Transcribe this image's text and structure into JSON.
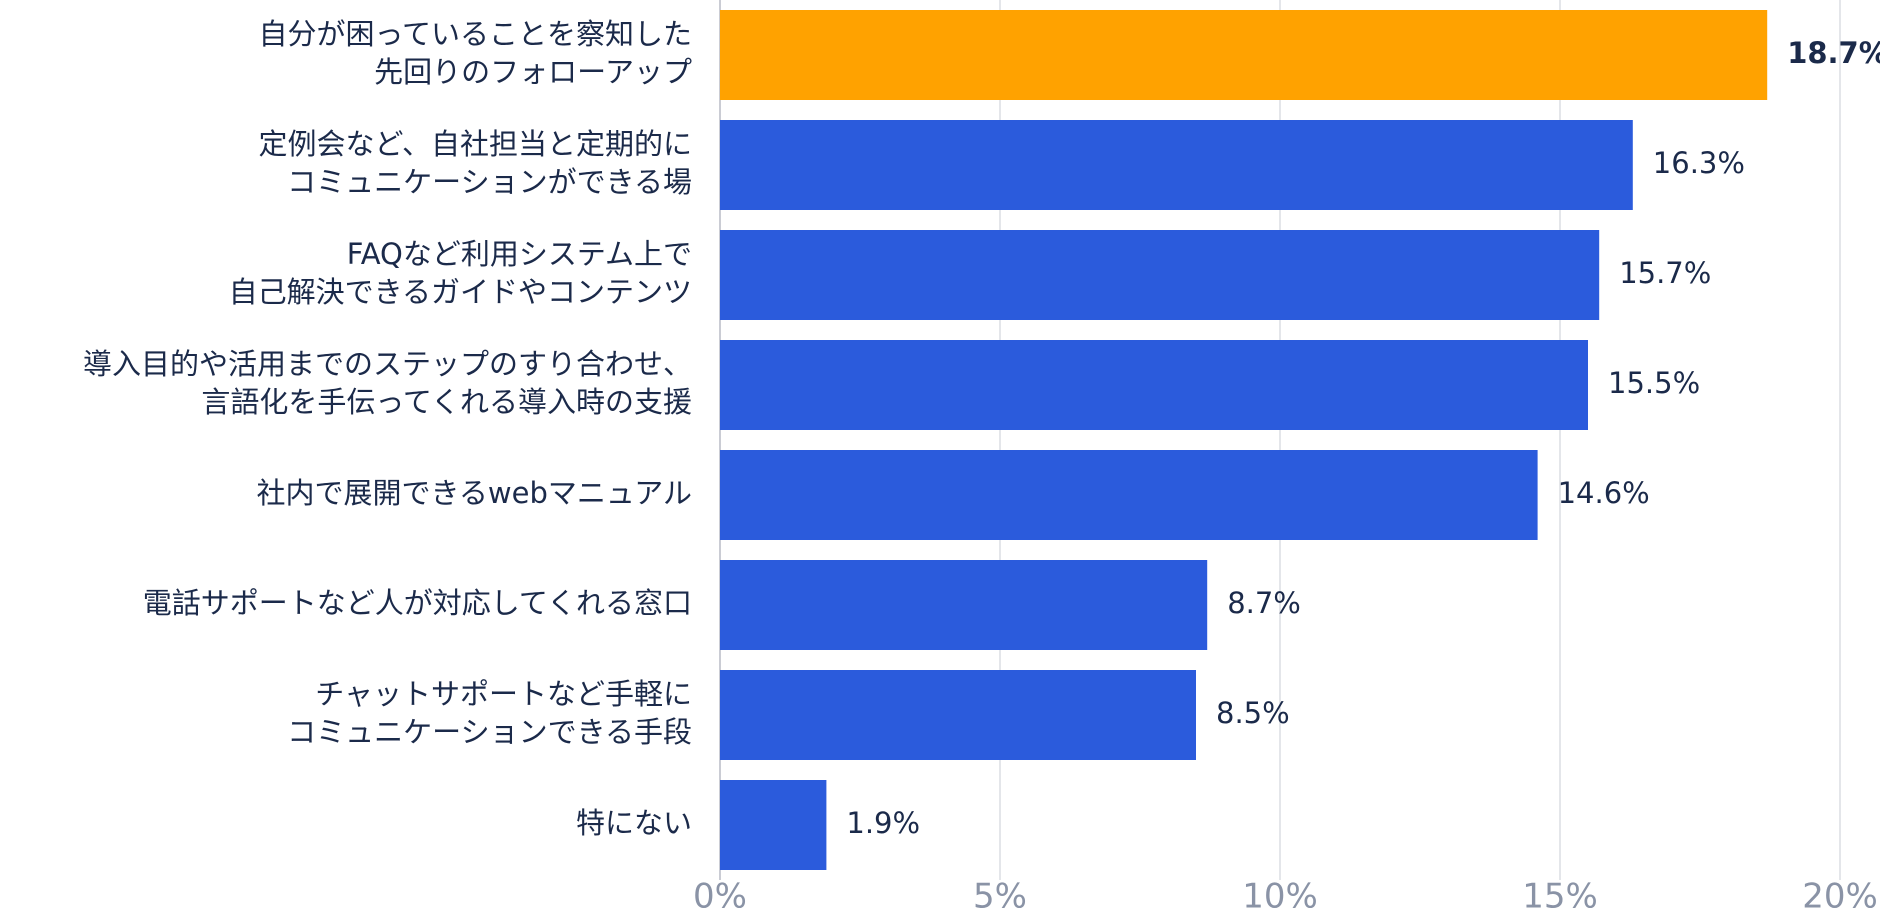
{
  "chart_data": {
    "type": "bar",
    "orientation": "horizontal",
    "categories": [
      [
        "自分が困っていることを察知した",
        "先回りのフォローアップ"
      ],
      [
        "定例会など、自社担当と定期的に",
        "コミュニケーションができる場"
      ],
      [
        "FAQなど利用システム上で",
        "自己解決できるガイドやコンテンツ"
      ],
      [
        "導入目的や活用までのステップのすり合わせ、",
        "言語化を手伝ってくれる導入時の支援"
      ],
      [
        "社内で展開できるwebマニュアル"
      ],
      [
        "電話サポートなど人が対応してくれる窓口"
      ],
      [
        "チャットサポートなど手軽に",
        "コミュニケーションできる手段"
      ],
      [
        "特にない"
      ]
    ],
    "values": [
      18.7,
      16.3,
      15.7,
      15.5,
      14.6,
      8.7,
      8.5,
      1.9
    ],
    "value_labels": [
      "18.7%",
      "16.3%",
      "15.7%",
      "15.5%",
      "14.6%",
      "8.7%",
      "8.5%",
      "1.9%"
    ],
    "colors": [
      "#ffa200",
      "#2b5bdc",
      "#2b5bdc",
      "#2b5bdc",
      "#2b5bdc",
      "#2b5bdc",
      "#2b5bdc",
      "#2b5bdc"
    ],
    "xlim": [
      0,
      20
    ],
    "xticks": [
      {
        "value": 0,
        "label": "0%"
      },
      {
        "value": 5,
        "label": "5%"
      },
      {
        "value": 10,
        "label": "10%"
      },
      {
        "value": 15,
        "label": "15%"
      },
      {
        "value": 20,
        "label": "20%"
      }
    ],
    "grid": true
  }
}
